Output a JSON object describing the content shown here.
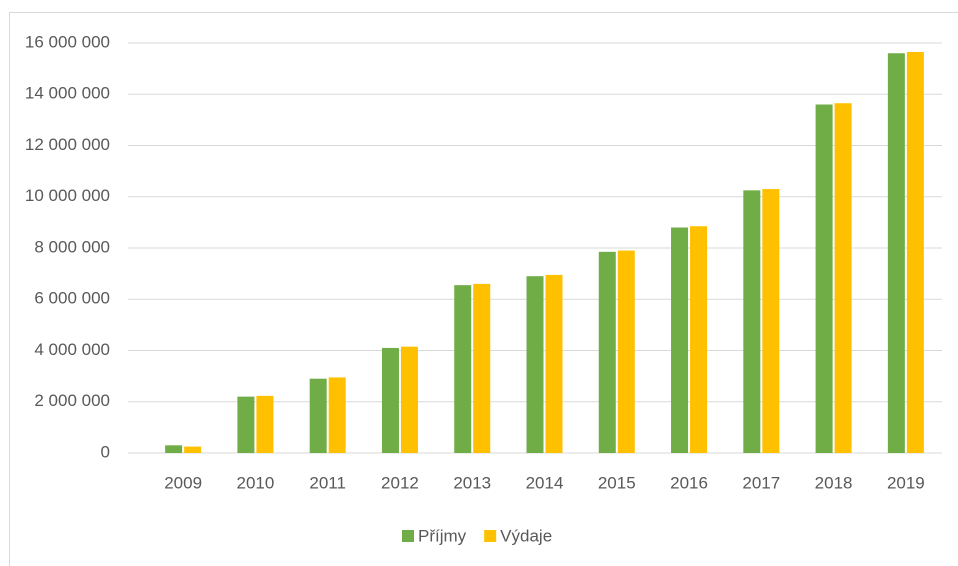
{
  "chart_data": {
    "type": "bar",
    "categories": [
      "2009",
      "2010",
      "2011",
      "2012",
      "2013",
      "2014",
      "2015",
      "2016",
      "2017",
      "2018",
      "2019"
    ],
    "series": [
      {
        "name": "Příjmy",
        "color": "#70ad47",
        "values": [
          300000,
          2200000,
          2900000,
          4100000,
          6550000,
          6900000,
          7850000,
          8800000,
          10250000,
          13600000,
          15600000
        ]
      },
      {
        "name": "Výdaje",
        "color": "#ffc000",
        "values": [
          250000,
          2230000,
          2950000,
          4150000,
          6600000,
          6950000,
          7900000,
          8850000,
          10300000,
          13650000,
          15650000
        ]
      }
    ],
    "ylim": [
      0,
      16000000
    ],
    "yticks": [
      0,
      {
        "value": 2000000,
        "label": "2 000 000"
      },
      {
        "value": 4000000,
        "label": "4 000 000"
      },
      {
        "value": 6000000,
        "label": "6 000 000"
      },
      {
        "value": 8000000,
        "label": "8 000 000"
      },
      {
        "value": 10000000,
        "label": "10 000 000"
      },
      {
        "value": 12000000,
        "label": "12 000 000"
      },
      {
        "value": 14000000,
        "label": "14 000 000"
      },
      {
        "value": 16000000,
        "label": "16 000 000"
      }
    ],
    "grid": true,
    "legend": "bottom"
  }
}
